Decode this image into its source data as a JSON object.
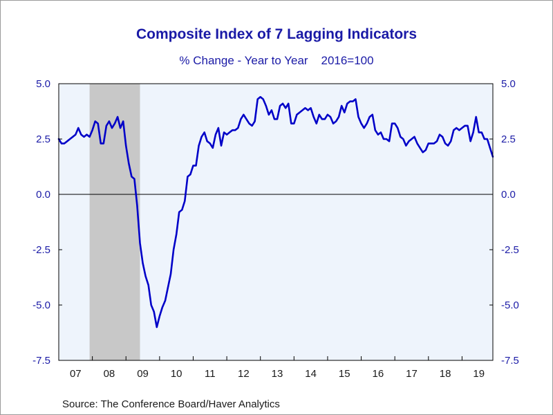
{
  "chart_data": {
    "type": "line",
    "title": "Composite Index of 7 Lagging Indicators",
    "subtitle": "% Change - Year to Year    2016=100",
    "source": "Source:  The Conference Board/Haver Analytics",
    "ylim": [
      -7.5,
      5.0
    ],
    "yticks": [
      "5.0",
      "2.5",
      "0.0",
      "-2.5",
      "-5.0",
      "-7.5"
    ],
    "ytick_values": [
      5.0,
      2.5,
      0.0,
      -2.5,
      -5.0,
      -7.5
    ],
    "xlim": [
      2007.0,
      2019.917
    ],
    "xtick_labels": [
      "07",
      "08",
      "09",
      "10",
      "11",
      "12",
      "13",
      "14",
      "15",
      "16",
      "17",
      "18",
      "19"
    ],
    "recession": [
      2007.917,
      2009.417
    ],
    "zero_line": true,
    "colors": {
      "line": "#0000c8",
      "plot_background": "#eef4fc",
      "recession": "#c8c8c8",
      "text": "#1a1aa6"
    },
    "series": [
      {
        "values": [
          [
            2007.0,
            2.5
          ],
          [
            2007.083,
            2.3
          ],
          [
            2007.167,
            2.3
          ],
          [
            2007.25,
            2.4
          ],
          [
            2007.333,
            2.5
          ],
          [
            2007.417,
            2.6
          ],
          [
            2007.5,
            2.7
          ],
          [
            2007.583,
            3.0
          ],
          [
            2007.667,
            2.7
          ],
          [
            2007.75,
            2.6
          ],
          [
            2007.833,
            2.7
          ],
          [
            2007.917,
            2.6
          ],
          [
            2008.0,
            2.9
          ],
          [
            2008.083,
            3.3
          ],
          [
            2008.167,
            3.2
          ],
          [
            2008.25,
            2.3
          ],
          [
            2008.333,
            2.3
          ],
          [
            2008.417,
            3.1
          ],
          [
            2008.5,
            3.3
          ],
          [
            2008.583,
            3.0
          ],
          [
            2008.667,
            3.2
          ],
          [
            2008.75,
            3.5
          ],
          [
            2008.833,
            3.0
          ],
          [
            2008.917,
            3.3
          ],
          [
            2009.0,
            2.2
          ],
          [
            2009.083,
            1.4
          ],
          [
            2009.167,
            0.8
          ],
          [
            2009.25,
            0.7
          ],
          [
            2009.333,
            -0.5
          ],
          [
            2009.417,
            -2.2
          ],
          [
            2009.5,
            -3.1
          ],
          [
            2009.583,
            -3.7
          ],
          [
            2009.667,
            -4.1
          ],
          [
            2009.75,
            -5.0
          ],
          [
            2009.833,
            -5.3
          ],
          [
            2009.917,
            -6.0
          ],
          [
            2010.0,
            -5.5
          ],
          [
            2010.083,
            -5.1
          ],
          [
            2010.167,
            -4.8
          ],
          [
            2010.25,
            -4.2
          ],
          [
            2010.333,
            -3.6
          ],
          [
            2010.417,
            -2.5
          ],
          [
            2010.5,
            -1.8
          ],
          [
            2010.583,
            -0.8
          ],
          [
            2010.667,
            -0.7
          ],
          [
            2010.75,
            -0.3
          ],
          [
            2010.833,
            0.8
          ],
          [
            2010.917,
            0.9
          ],
          [
            2011.0,
            1.3
          ],
          [
            2011.083,
            1.3
          ],
          [
            2011.167,
            2.2
          ],
          [
            2011.25,
            2.6
          ],
          [
            2011.333,
            2.8
          ],
          [
            2011.417,
            2.4
          ],
          [
            2011.5,
            2.3
          ],
          [
            2011.583,
            2.1
          ],
          [
            2011.667,
            2.7
          ],
          [
            2011.75,
            3.0
          ],
          [
            2011.833,
            2.2
          ],
          [
            2011.917,
            2.8
          ],
          [
            2012.0,
            2.7
          ],
          [
            2012.083,
            2.8
          ],
          [
            2012.167,
            2.9
          ],
          [
            2012.25,
            2.9
          ],
          [
            2012.333,
            3.0
          ],
          [
            2012.417,
            3.4
          ],
          [
            2012.5,
            3.6
          ],
          [
            2012.583,
            3.4
          ],
          [
            2012.667,
            3.2
          ],
          [
            2012.75,
            3.1
          ],
          [
            2012.833,
            3.3
          ],
          [
            2012.917,
            4.3
          ],
          [
            2013.0,
            4.4
          ],
          [
            2013.083,
            4.3
          ],
          [
            2013.167,
            4.0
          ],
          [
            2013.25,
            3.6
          ],
          [
            2013.333,
            3.8
          ],
          [
            2013.417,
            3.4
          ],
          [
            2013.5,
            3.4
          ],
          [
            2013.583,
            4.0
          ],
          [
            2013.667,
            4.1
          ],
          [
            2013.75,
            3.9
          ],
          [
            2013.833,
            4.1
          ],
          [
            2013.917,
            3.2
          ],
          [
            2014.0,
            3.2
          ],
          [
            2014.083,
            3.6
          ],
          [
            2014.167,
            3.7
          ],
          [
            2014.25,
            3.8
          ],
          [
            2014.333,
            3.9
          ],
          [
            2014.417,
            3.8
          ],
          [
            2014.5,
            3.9
          ],
          [
            2014.583,
            3.5
          ],
          [
            2014.667,
            3.2
          ],
          [
            2014.75,
            3.6
          ],
          [
            2014.833,
            3.4
          ],
          [
            2014.917,
            3.4
          ],
          [
            2015.0,
            3.6
          ],
          [
            2015.083,
            3.5
          ],
          [
            2015.167,
            3.2
          ],
          [
            2015.25,
            3.3
          ],
          [
            2015.333,
            3.5
          ],
          [
            2015.417,
            4.0
          ],
          [
            2015.5,
            3.7
          ],
          [
            2015.583,
            4.1
          ],
          [
            2015.667,
            4.2
          ],
          [
            2015.75,
            4.2
          ],
          [
            2015.833,
            4.3
          ],
          [
            2015.917,
            3.5
          ],
          [
            2016.0,
            3.2
          ],
          [
            2016.083,
            3.0
          ],
          [
            2016.167,
            3.2
          ],
          [
            2016.25,
            3.5
          ],
          [
            2016.333,
            3.6
          ],
          [
            2016.417,
            2.9
          ],
          [
            2016.5,
            2.7
          ],
          [
            2016.583,
            2.8
          ],
          [
            2016.667,
            2.5
          ],
          [
            2016.75,
            2.5
          ],
          [
            2016.833,
            2.4
          ],
          [
            2016.917,
            3.2
          ],
          [
            2017.0,
            3.2
          ],
          [
            2017.083,
            3.0
          ],
          [
            2017.167,
            2.6
          ],
          [
            2017.25,
            2.5
          ],
          [
            2017.333,
            2.2
          ],
          [
            2017.417,
            2.4
          ],
          [
            2017.5,
            2.5
          ],
          [
            2017.583,
            2.6
          ],
          [
            2017.667,
            2.3
          ],
          [
            2017.75,
            2.1
          ],
          [
            2017.833,
            1.9
          ],
          [
            2017.917,
            2.0
          ],
          [
            2018.0,
            2.3
          ],
          [
            2018.083,
            2.3
          ],
          [
            2018.167,
            2.3
          ],
          [
            2018.25,
            2.4
          ],
          [
            2018.333,
            2.7
          ],
          [
            2018.417,
            2.6
          ],
          [
            2018.5,
            2.3
          ],
          [
            2018.583,
            2.2
          ],
          [
            2018.667,
            2.4
          ],
          [
            2018.75,
            2.9
          ],
          [
            2018.833,
            3.0
          ],
          [
            2018.917,
            2.9
          ],
          [
            2019.0,
            3.0
          ],
          [
            2019.083,
            3.1
          ],
          [
            2019.167,
            3.1
          ],
          [
            2019.25,
            2.4
          ],
          [
            2019.333,
            2.8
          ],
          [
            2019.417,
            3.5
          ],
          [
            2019.5,
            2.8
          ],
          [
            2019.583,
            2.8
          ],
          [
            2019.667,
            2.5
          ],
          [
            2019.75,
            2.5
          ],
          [
            2019.833,
            2.1
          ],
          [
            2019.917,
            1.7
          ]
        ]
      }
    ]
  }
}
